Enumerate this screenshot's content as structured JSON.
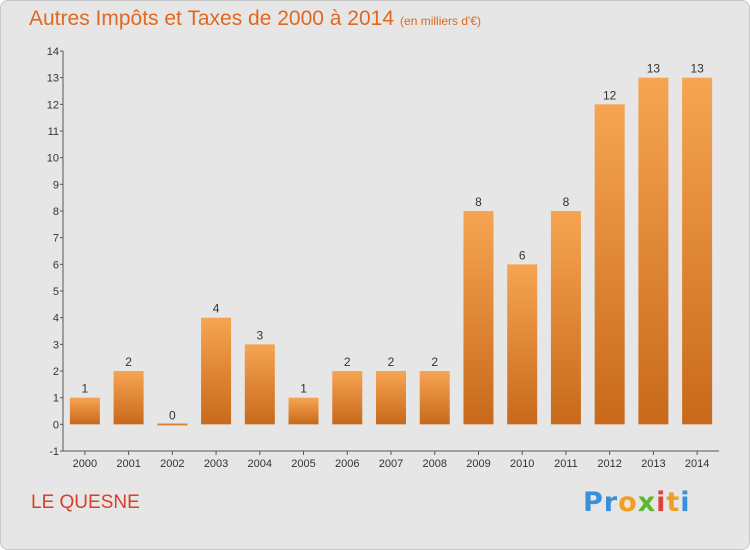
{
  "title": {
    "main": "Autres Impôts et Taxes de 2000 à 2014",
    "unit": "(en milliers d'€)"
  },
  "commune": "LE QUESNE",
  "logo": {
    "text": "Proxiti",
    "colors": [
      "#3a8fd8",
      "#3a8fd8",
      "#f0a020",
      "#5cb82e",
      "#e04040",
      "#f0a020",
      "#3a8fd8"
    ]
  },
  "colors": {
    "bar_top": "#f6a552",
    "bar_bottom": "#c8691b",
    "title": "#e0681f",
    "commune": "#d8402a"
  },
  "chart_data": {
    "type": "bar",
    "categories": [
      "2000",
      "2001",
      "2002",
      "2003",
      "2004",
      "2005",
      "2006",
      "2007",
      "2008",
      "2009",
      "2010",
      "2011",
      "2012",
      "2013",
      "2014"
    ],
    "values": [
      1,
      2,
      0,
      4,
      3,
      1,
      2,
      2,
      2,
      8,
      6,
      8,
      12,
      13,
      13
    ],
    "ylim": [
      -1,
      14
    ],
    "yticks": [
      -1,
      0,
      1,
      2,
      3,
      4,
      5,
      6,
      7,
      8,
      9,
      10,
      11,
      12,
      13,
      14
    ],
    "grid": false
  }
}
